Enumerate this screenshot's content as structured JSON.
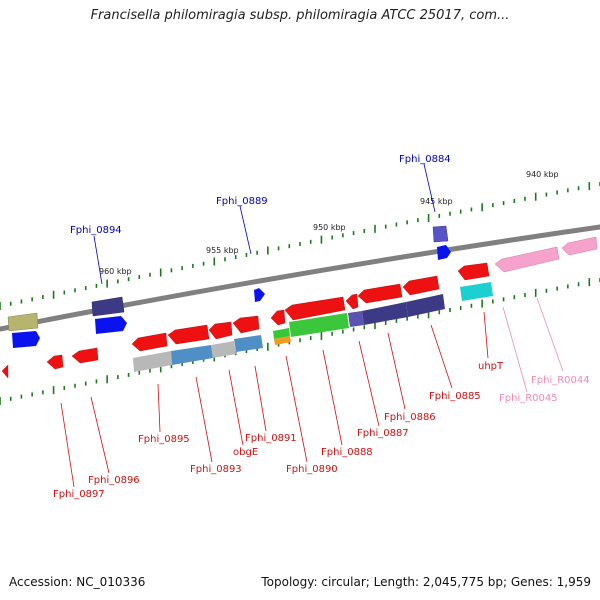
{
  "title": "Francisella philomiragia subsp. philomiragia ATCC 25017, com...",
  "accession": "Accession: NC_010336",
  "summary": "Topology: circular; Length: 2,045,775 bp; Genes: 1,959",
  "colors": {
    "backbone": "#808080",
    "cds": "#ee1111",
    "upper_gene_label": "#0000bb",
    "lower_gene_label": "#cc1111",
    "rrna_label": "#f08ab8",
    "tick": "#1a7a1a",
    "scale_label": "#222222"
  },
  "scale_labels": [
    "960 kbp",
    "955 kbp",
    "950 kbp",
    "945 kbp",
    "940 kbp"
  ],
  "upper_gene_labels": [
    "Fphi_0894",
    "Fphi_0889",
    "Fphi_0884"
  ],
  "lower_gene_labels": [
    "Fphi_0897",
    "Fphi_0896",
    "Fphi_0895",
    "Fphi_0893",
    "obgE",
    "Fphi_0891",
    "Fphi_0890",
    "Fphi_0888",
    "Fphi_0887",
    "Fphi_0886",
    "Fphi_0885",
    "uhpT",
    "Fphi_R0045",
    "Fphi_R0044"
  ]
}
